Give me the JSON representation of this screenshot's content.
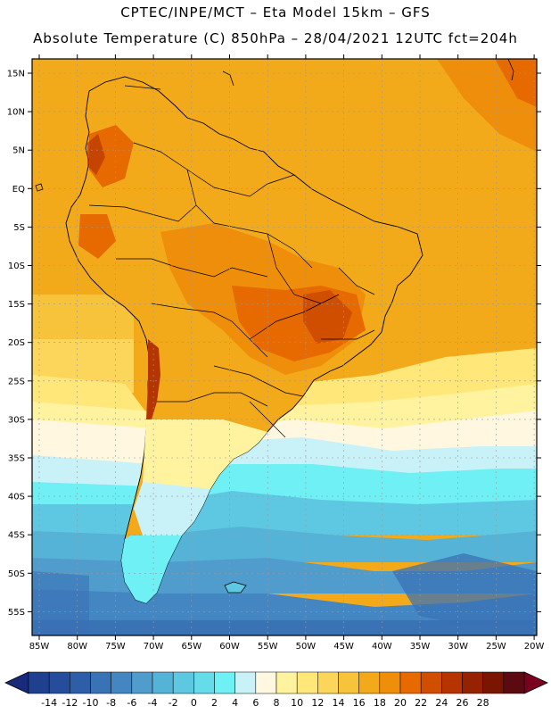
{
  "header": {
    "line1": "CPTEC/INPE/MCT –  Eta Model 15km – GFS",
    "line2": "Absolute Temperature (C) 850hPa – 28/04/2021 12UTC fct=204h"
  },
  "map": {
    "region": "South America",
    "variable": "Absolute Temperature at 850hPa",
    "units": "C",
    "lat_labels": [
      "15N",
      "10N",
      "5N",
      "EQ",
      "5S",
      "10S",
      "15S",
      "20S",
      "25S",
      "30S",
      "35S",
      "40S",
      "45S",
      "50S",
      "55S"
    ],
    "lon_labels": [
      "85W",
      "80W",
      "75W",
      "70W",
      "65W",
      "60W",
      "55W",
      "50W",
      "45W",
      "40W",
      "35W",
      "30W",
      "25W",
      "20W"
    ]
  },
  "colorbar": {
    "labels": [
      "-14",
      "-12",
      "-10",
      "-8",
      "-6",
      "-4",
      "-2",
      "0",
      "2",
      "4",
      "6",
      "8",
      "10",
      "12",
      "14",
      "16",
      "18",
      "20",
      "22",
      "24",
      "26",
      "28"
    ],
    "colors": [
      "#1f3f8f",
      "#264d9c",
      "#2f5ea8",
      "#3a72b6",
      "#4486c2",
      "#4f9ccd",
      "#55b3d8",
      "#5ec8e2",
      "#66dcea",
      "#6ff0f4",
      "#c8f1f8",
      "#fff7e0",
      "#fff3a0",
      "#ffe77a",
      "#fbd65a",
      "#f6c33a",
      "#f2a91a",
      "#ef8e0a",
      "#e66a00",
      "#d04e00",
      "#b63400",
      "#962200",
      "#7a1600",
      "#5a0a10"
    ],
    "left_arrow": "#1a2a7a",
    "right_arrow": "#7a0020"
  }
}
